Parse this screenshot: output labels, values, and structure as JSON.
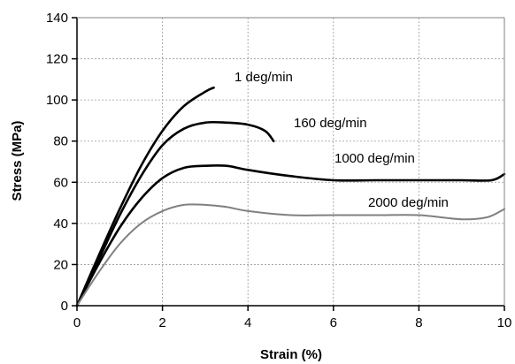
{
  "chart_data": {
    "type": "line",
    "title": "",
    "xlabel": "Strain (%)",
    "ylabel": "Stress (MPa)",
    "xlim": [
      0,
      10
    ],
    "ylim": [
      0,
      140
    ],
    "x_ticks": [
      0,
      2,
      4,
      6,
      8,
      10
    ],
    "y_ticks": [
      0,
      20,
      40,
      60,
      80,
      100,
      120,
      140
    ],
    "grid": true,
    "legend": "inline labels",
    "series": [
      {
        "name": "1 deg/min",
        "color": "#000000",
        "x": [
          0,
          0.5,
          1.0,
          1.5,
          2.0,
          2.5,
          3.0,
          3.2
        ],
        "y": [
          0,
          24,
          47,
          68,
          85,
          97,
          104,
          106
        ]
      },
      {
        "name": "160 deg/min",
        "color": "#000000",
        "x": [
          0,
          0.5,
          1.0,
          1.5,
          2.0,
          2.5,
          3.0,
          3.5,
          4.0,
          4.4,
          4.6
        ],
        "y": [
          0,
          22,
          44,
          63,
          78,
          86,
          89,
          89,
          88,
          85,
          80
        ]
      },
      {
        "name": "1000 deg/min",
        "color": "#000000",
        "x": [
          0,
          0.5,
          1.0,
          1.5,
          2.0,
          2.5,
          3.0,
          3.5,
          4.0,
          5.0,
          6.0,
          7.0,
          8.0,
          9.0,
          9.7,
          10.0
        ],
        "y": [
          0,
          20,
          38,
          52,
          62,
          67,
          68,
          68,
          66,
          63,
          61,
          61,
          61,
          61,
          61,
          64
        ]
      },
      {
        "name": "2000 deg/min",
        "color": "#808080",
        "x": [
          0,
          0.5,
          1.0,
          1.5,
          2.0,
          2.5,
          3.0,
          3.5,
          4.0,
          5.0,
          6.0,
          7.0,
          8.0,
          9.0,
          9.6,
          10.0
        ],
        "y": [
          0,
          16,
          30,
          40,
          46,
          49,
          49,
          48,
          46,
          44,
          44,
          44,
          44,
          42,
          43,
          47
        ]
      }
    ]
  }
}
